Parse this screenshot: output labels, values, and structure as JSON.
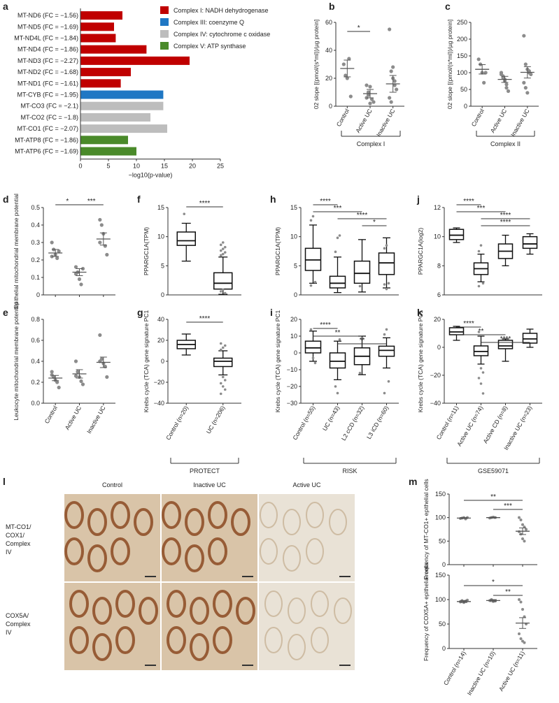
{
  "chart_data": [
    {
      "panel": "a",
      "type": "bar",
      "categories": [
        "MT-ND6 (FC = −1.56)",
        "MT-ND5 (FC = −1.69)",
        "MT-ND4L (FC = −1.84)",
        "MT-ND4 (FC = −1.86)",
        "MT-ND3 (FC = −2.27)",
        "MT-ND2 (FC = −1.68)",
        "MT-ND1 (FC = −1.61)",
        "MT-CYB (FC = −1.95)",
        "MT-CO3 (FC = −2.1)",
        "MT-CO2 (FC = −1.8)",
        "MT-CO1 (FC = −2.07)",
        "MT-ATP8 (FC = −1.86)",
        "MT-ATP6 (FC = −1.69)"
      ],
      "values": [
        7.5,
        6.0,
        6.3,
        11.8,
        19.5,
        9.0,
        7.2,
        14.8,
        14.8,
        12.5,
        15.5,
        8.5,
        10.0
      ],
      "groups": [
        0,
        0,
        0,
        0,
        0,
        0,
        0,
        1,
        2,
        2,
        2,
        3,
        3
      ],
      "legend": [
        "Complex I: NADH dehydrogenase",
        "Complex III: coenzyme Q",
        "Complex IV: cytochrome c oxidase",
        "Complex V: ATP synthase"
      ],
      "colors": [
        "#c00000",
        "#1f77c4",
        "#bdbdbd",
        "#4a8a2a"
      ],
      "xlabel": "−log10(p-value)",
      "xlim": [
        0,
        25
      ],
      "xticks": [
        "0",
        "5",
        "10",
        "15",
        "20",
        "25"
      ]
    },
    {
      "panel": "b",
      "type": "scatter",
      "categories": [
        "Control",
        "Active UC",
        "Inactive UC"
      ],
      "points": [
        [
          30,
          22,
          20,
          34,
          7
        ],
        [
          15,
          10,
          14,
          5,
          3,
          6,
          8,
          2
        ],
        [
          55,
          25,
          20,
          15,
          12,
          6,
          3,
          28,
          18
        ]
      ],
      "means": [
        27,
        9,
        16
      ],
      "sems": [
        6,
        3,
        6
      ],
      "ylabel": "02 slope [(pmol/(s*ml))/µg protein]",
      "ylim": [
        0,
        60
      ],
      "yticks": [
        "0",
        "20",
        "40",
        "60"
      ],
      "sig": [
        "*"
      ],
      "bracket": "Complex I"
    },
    {
      "panel": "c",
      "type": "scatter",
      "categories": [
        "Control",
        "Active UC",
        "Inactive UC"
      ],
      "points": [
        [
          140,
          125,
          100,
          70,
          100
        ],
        [
          95,
          90,
          75,
          65,
          45,
          100,
          85,
          80,
          55
        ],
        [
          210,
          125,
          110,
          100,
          95,
          70,
          55,
          40,
          105
        ]
      ],
      "means": [
        110,
        80,
        101
      ],
      "sems": [
        14,
        9,
        17
      ],
      "ylabel": "02 slope [(pmol/(s*ml))/µg protein]",
      "ylim": [
        0,
        250
      ],
      "yticks": [
        "0",
        "50",
        "100",
        "150",
        "200",
        "250"
      ],
      "bracket": "Complex II"
    },
    {
      "panel": "d",
      "type": "scatter",
      "categories": [
        "Control",
        "Active UC",
        "Inactive UC"
      ],
      "points": [
        [
          0.3,
          0.26,
          0.23,
          0.21,
          0.25,
          0.22
        ],
        [
          0.16,
          0.13,
          0.09,
          0.06,
          0.15,
          0.12
        ],
        [
          0.43,
          0.4,
          0.35,
          0.28,
          0.23,
          0.3
        ]
      ],
      "means": [
        0.24,
        0.13,
        0.32
      ],
      "sems": [
        0.02,
        0.02,
        0.035
      ],
      "ylabel": "Epithelial mitochondrial membrane potential",
      "ylim": [
        0,
        0.5
      ],
      "yticks": [
        "0",
        "0.1",
        "0.2",
        "0.3",
        "0.4",
        "0.5"
      ],
      "sig": [
        "*",
        "***"
      ]
    },
    {
      "panel": "e",
      "type": "scatter",
      "categories": [
        "Control",
        "Active UC",
        "Inactive UC"
      ],
      "points": [
        [
          0.3,
          0.25,
          0.22,
          0.2,
          0.15,
          0.27
        ],
        [
          0.4,
          0.3,
          0.25,
          0.21,
          0.18,
          0.26
        ],
        [
          0.65,
          0.42,
          0.38,
          0.35,
          0.25,
          0.4
        ]
      ],
      "means": [
        0.24,
        0.28,
        0.39
      ],
      "sems": [
        0.025,
        0.04,
        0.05
      ],
      "ylabel": "Leukocyte mitochondrial membrane potential",
      "ylim": [
        0,
        0.8
      ],
      "yticks": [
        "0.0",
        "0.2",
        "0.4",
        "0.6",
        "0.8"
      ]
    },
    {
      "panel": "f",
      "type": "box",
      "categories": [
        "Control (n=20)",
        "UC (n=206)"
      ],
      "boxes": [
        {
          "lw": 5.8,
          "q1": 8.5,
          "med": 9.3,
          "q3": 10.8,
          "uw": 12.3,
          "out": [
            13.9
          ]
        },
        {
          "lw": 0.1,
          "q1": 1.0,
          "med": 2.0,
          "q3": 3.8,
          "uw": 6.5,
          "out": [
            6.8,
            7.0,
            7.3,
            7.6,
            7.9,
            8.2,
            8.6,
            9.0,
            0.3,
            0.6,
            0.9
          ]
        }
      ],
      "ylabel": "PPARGC1A(TPM)",
      "ylim": [
        0,
        15
      ],
      "yticks": [
        "0",
        "5",
        "10",
        "15"
      ],
      "sig": [
        "****"
      ]
    },
    {
      "panel": "g",
      "type": "box",
      "categories": [
        "Control (n=20)",
        "UC (n=206)"
      ],
      "boxes": [
        {
          "lw": 6,
          "q1": 12,
          "med": 16,
          "q3": 20,
          "uw": 26,
          "out": []
        },
        {
          "lw": -13,
          "q1": -5,
          "med": 0,
          "q3": 3,
          "uw": 10,
          "out": [
            11,
            13,
            15,
            17,
            -15,
            -18,
            -21,
            -24,
            -27,
            -31
          ]
        }
      ],
      "ylabel": "Krebs cycle (TCA) gene signature PC1",
      "ylim": [
        -40,
        40
      ],
      "yticks": [
        "−40",
        "−20",
        "0",
        "20",
        "40"
      ],
      "sig": [
        "****"
      ],
      "bracket": "PROTECT"
    },
    {
      "panel": "h",
      "type": "box",
      "categories": [
        "Control (n=55)",
        "UC (n=43)",
        "L2 cCD (n=32)",
        "L3 iCD (n=60)"
      ],
      "boxes": [
        {
          "lw": 2,
          "q1": 4.2,
          "med": 6.0,
          "q3": 8.0,
          "uw": 12.0,
          "out": [
            12.8,
            13.5,
            2.2,
            1.6
          ]
        },
        {
          "lw": 0.4,
          "q1": 1.2,
          "med": 2.0,
          "q3": 3.2,
          "uw": 6.5,
          "out": [
            7.4,
            9.8,
            10.2
          ]
        },
        {
          "lw": 0.5,
          "q1": 2.0,
          "med": 3.7,
          "q3": 5.8,
          "uw": 9.5,
          "out": [
            1.5
          ]
        },
        {
          "lw": 1.2,
          "q1": 3.5,
          "med": 5.5,
          "q3": 7.2,
          "uw": 9.8,
          "out": [
            8.0,
            8.5,
            2.0,
            1.8,
            1.0
          ]
        }
      ],
      "ylabel": "PPARGC1A(TPM)",
      "ylim": [
        0,
        15
      ],
      "yticks": [
        "0",
        "5",
        "10",
        "15"
      ],
      "sig": [
        "****",
        "***",
        "****",
        "*"
      ]
    },
    {
      "panel": "i",
      "type": "box",
      "categories": [
        "Control (n=55)",
        "UC (n=43)",
        "L2 cCD (n=32)",
        "L3 iCD (n=60)"
      ],
      "boxes": [
        {
          "lw": -5,
          "q1": 0,
          "med": 3,
          "q3": 7,
          "uw": 13,
          "out": [
            14,
            -3,
            -6
          ]
        },
        {
          "lw": -16,
          "q1": -9,
          "med": -5,
          "q3": 0,
          "uw": 7,
          "out": [
            -20,
            -24,
            8
          ]
        },
        {
          "lw": -13,
          "q1": -7,
          "med": -2,
          "q3": 3,
          "uw": 10,
          "out": [
            -12
          ]
        },
        {
          "lw": -9,
          "q1": -2,
          "med": 1.5,
          "q3": 4,
          "uw": 9,
          "out": [
            11,
            14,
            -17,
            -24
          ]
        }
      ],
      "ylabel": "Krebs cycle (TCA) gene signature PC1",
      "ylim": [
        -30,
        20
      ],
      "yticks": [
        "−30",
        "−20",
        "−10",
        "0",
        "10",
        "20"
      ],
      "sig": [
        "****",
        "**",
        "**"
      ],
      "bracket": "RISK"
    },
    {
      "panel": "j",
      "type": "box",
      "categories": [
        "Control (n=11)",
        "Active UC (n=74)",
        "Active CD (n=8)",
        "Inactive UC (n=23)"
      ],
      "boxes": [
        {
          "lw": 9.6,
          "q1": 9.8,
          "med": 10.1,
          "q3": 10.5,
          "uw": 10.6,
          "out": []
        },
        {
          "lw": 6.9,
          "q1": 7.4,
          "med": 7.8,
          "q3": 8.2,
          "uw": 8.8,
          "out": [
            9.0,
            9.4,
            6.8,
            6.6
          ]
        },
        {
          "lw": 8.0,
          "q1": 8.5,
          "med": 9.0,
          "q3": 9.5,
          "uw": 10.1,
          "out": []
        },
        {
          "lw": 8.8,
          "q1": 9.2,
          "med": 9.5,
          "q3": 10.0,
          "uw": 10.2,
          "out": []
        }
      ],
      "ylabel": "PPARGC1A(log2)",
      "ylim": [
        6,
        12
      ],
      "yticks": [
        "6",
        "8",
        "10",
        "12"
      ],
      "sig": [
        "****",
        "***",
        "****",
        "****"
      ]
    },
    {
      "panel": "k",
      "type": "box",
      "categories": [
        "Control (n=11)",
        "Active UC (n=74)",
        "Active CD (n=8)",
        "Inactive UC (n=23)"
      ],
      "boxes": [
        {
          "lw": 5,
          "q1": 9,
          "med": 11,
          "q3": 14,
          "uw": 15,
          "out": []
        },
        {
          "lw": -12,
          "q1": -6,
          "med": -3,
          "q3": 1,
          "uw": 8,
          "out": [
            11,
            -15,
            -18,
            -22,
            -26,
            -33
          ]
        },
        {
          "lw": -10,
          "q1": -1,
          "med": 1,
          "q3": 5,
          "uw": 6,
          "out": []
        },
        {
          "lw": 0,
          "q1": 3,
          "med": 6,
          "q3": 10,
          "uw": 13,
          "out": []
        }
      ],
      "ylabel": "Krebs cycle (TCA) gene signature PC1",
      "ylim": [
        -40,
        20
      ],
      "yticks": [
        "−40",
        "−20",
        "0",
        "20"
      ],
      "sig": [
        "****",
        "**",
        "****"
      ],
      "bracket": "GSE59071"
    },
    {
      "panel": "m",
      "type": "scatter",
      "categories": [
        "Control (n=14)",
        "Inactive UC (n=10)",
        "Active UC (n=11)"
      ],
      "points": [
        [
          98,
          99,
          100,
          97,
          100
        ],
        [
          99,
          100,
          101,
          100
        ],
        [
          100,
          95,
          85,
          80,
          75,
          70,
          65,
          55,
          50
        ]
      ],
      "means": [
        99,
        100,
        71
      ],
      "sems": [
        1,
        1,
        7
      ],
      "ylabel": "Frequency of MT-CO1+ epithelial cells",
      "ylim": [
        0,
        150
      ],
      "yticks": [
        "0",
        "50",
        "100",
        "150"
      ],
      "sig": [
        "**",
        "***"
      ]
    },
    {
      "panel": "m",
      "type": "scatter",
      "categories": [
        "Control (n=14)",
        "Inactive UC (n=10)",
        "Active UC (n=11)"
      ],
      "points": [
        [
          96,
          98,
          94,
          97,
          99,
          95
        ],
        [
          98,
          100,
          96,
          97
        ],
        [
          100,
          95,
          80,
          65,
          50,
          30,
          20,
          15,
          12
        ]
      ],
      "means": [
        96,
        98,
        52
      ],
      "sems": [
        2,
        2,
        11
      ],
      "ylabel": "Frequency of COX5A+ epithelial cells",
      "ylim": [
        0,
        150
      ],
      "yticks": [
        "0",
        "50",
        "100",
        "150"
      ],
      "sig": [
        "*",
        "**"
      ]
    }
  ],
  "panel_l": {
    "columns": [
      "Control",
      "Inactive UC",
      "Active UC"
    ],
    "rows": [
      "MT-CO1/ COX1/ Complex IV",
      "COX5A/ Complex IV"
    ]
  },
  "panel_letters": [
    "a",
    "b",
    "c",
    "d",
    "e",
    "f",
    "g",
    "h",
    "i",
    "j",
    "k",
    "l",
    "m"
  ]
}
